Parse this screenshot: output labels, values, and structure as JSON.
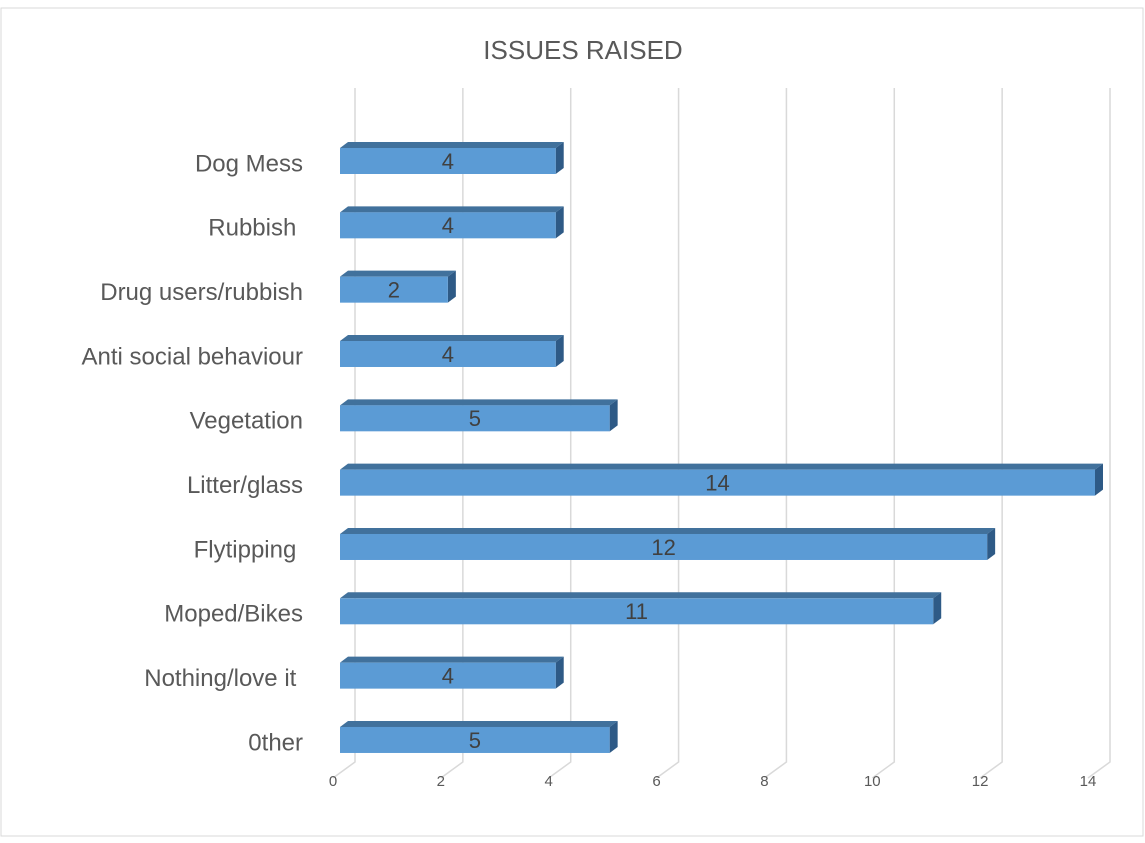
{
  "chart_data": {
    "type": "bar",
    "orientation": "horizontal",
    "title": "ISSUES RAISED",
    "categories": [
      "Dog Mess",
      "Rubbish ",
      "Drug users/rubbish",
      "Anti social behaviour",
      "Vegetation",
      "Litter/glass",
      "Flytipping ",
      "Moped/Bikes",
      "Nothing/love it ",
      "0ther"
    ],
    "values": [
      4,
      4,
      2,
      4,
      5,
      14,
      12,
      11,
      4,
      5
    ],
    "color": "#5b9bd5",
    "xlim": [
      0,
      14
    ],
    "xticks": [
      0,
      2,
      4,
      6,
      8,
      10,
      12,
      14
    ],
    "grid": true
  }
}
